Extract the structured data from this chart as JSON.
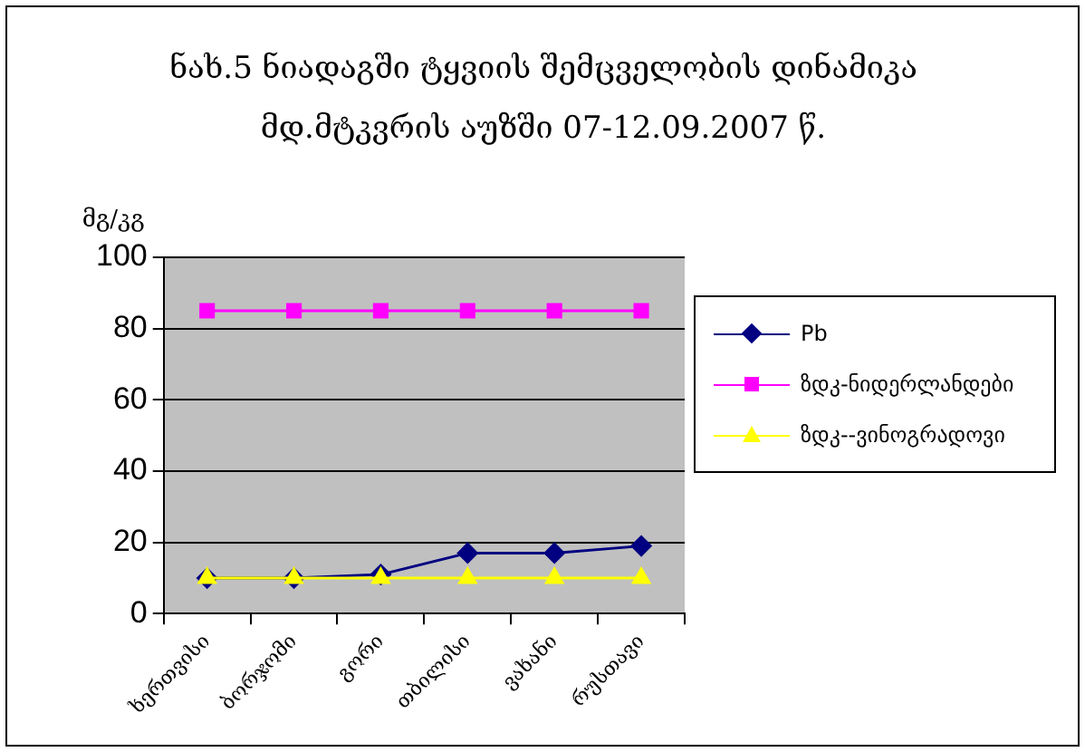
{
  "chart_data": {
    "type": "line",
    "title": "ნახ.5 ნიადაგში ტყვიის შემცველობის დინამიკა მდ.მტკვრის აუზში 07-12.09.2007 წ.",
    "ylabel": "მგ/კგ",
    "categories": [
      "ხერთვისი",
      "ბორჯომი",
      "გორი",
      "თბილისი",
      "ვახანი",
      "რუსთავი"
    ],
    "series": [
      {
        "name": "Pb",
        "color": "#000080",
        "marker": "diamond",
        "values": [
          10,
          10,
          11,
          17,
          17,
          19
        ]
      },
      {
        "name": "ზდკ-ნიდერლანდები",
        "color": "#ff00ff",
        "marker": "square",
        "values": [
          85,
          85,
          85,
          85,
          85,
          85
        ]
      },
      {
        "name": "ზდკ--ვინოგრადოვი",
        "color": "#ffff00",
        "marker": "triangle",
        "values": [
          10,
          10,
          10,
          10,
          10,
          10
        ]
      }
    ],
    "ylim": [
      0,
      100
    ],
    "yticks": [
      0,
      20,
      40,
      60,
      80,
      100
    ],
    "grid": "y",
    "legend": "right"
  }
}
